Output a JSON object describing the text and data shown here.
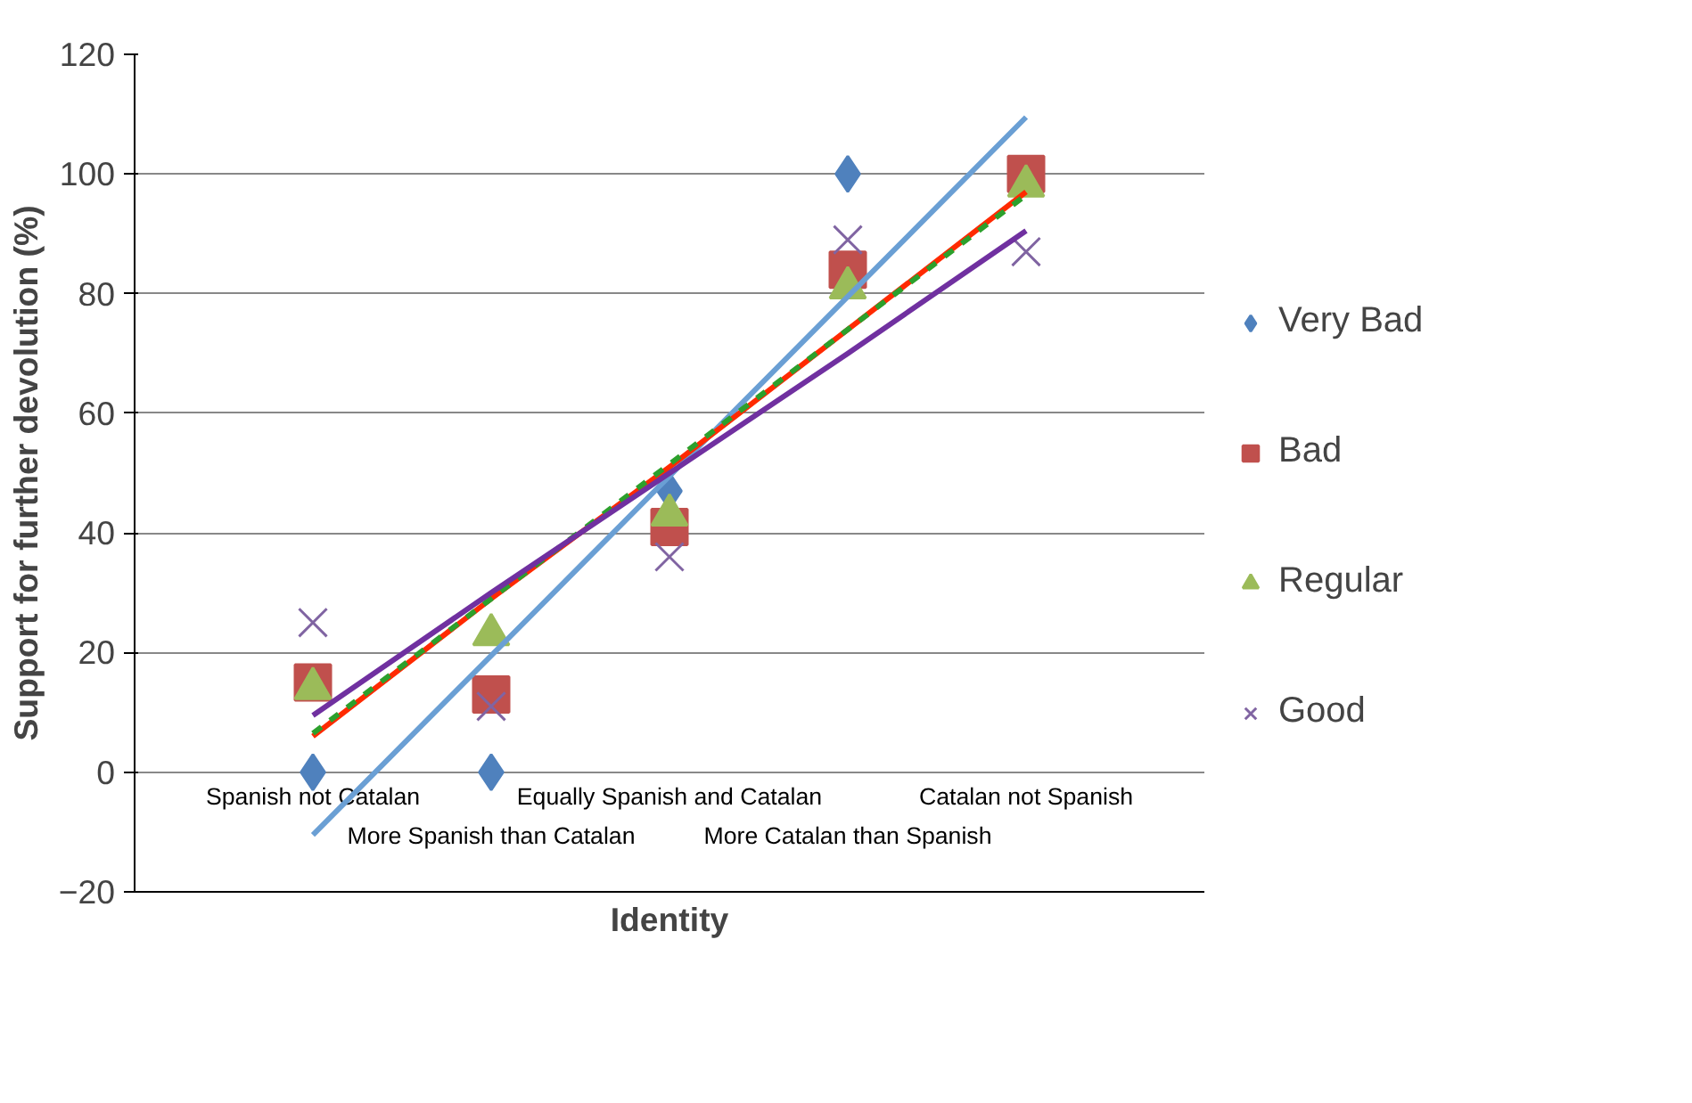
{
  "chart_data": {
    "type": "scatter",
    "xlabel": "Identity",
    "ylabel": "Support for further devolution (%)",
    "categories": [
      "Spanish not Catalan",
      "More Spanish than Catalan",
      "Equally Spanish and Catalan",
      "More Catalan than Spanish",
      "Catalan not Spanish"
    ],
    "series": [
      {
        "name": "Very Bad",
        "color": "#4f81bd",
        "marker": "diamond",
        "values": [
          0,
          0,
          47,
          100,
          null
        ]
      },
      {
        "name": "Bad",
        "color": "#c0504d",
        "marker": "square",
        "values": [
          15,
          13,
          41,
          84,
          100
        ]
      },
      {
        "name": "Regular",
        "color": "#9bbb59",
        "marker": "triangle",
        "values": [
          14,
          23,
          43,
          81,
          98
        ]
      },
      {
        "name": "Good",
        "color": "#8064a2",
        "marker": "cross",
        "values": [
          25,
          11,
          36,
          89,
          87
        ]
      },
      {
        "type": "line",
        "color": "#6a9fd4",
        "line_style": "solid",
        "values": [
          -10.5,
          19.5,
          49.5,
          79.5,
          109.5
        ]
      },
      {
        "type": "line",
        "color": "#ff2a00",
        "line_style": "solid",
        "values": [
          6,
          29,
          51,
          74,
          97
        ]
      },
      {
        "type": "line",
        "color": "#2ca02c",
        "line_style": "dashed",
        "values": [
          6.5,
          29,
          51.5,
          74,
          96.5
        ]
      },
      {
        "type": "line",
        "color": "#7030a0",
        "line_style": "solid",
        "values": [
          9.5,
          30,
          50,
          70,
          90.5
        ]
      }
    ],
    "ylim": [
      -20,
      120
    ],
    "yticks": [
      -20,
      0,
      20,
      40,
      60,
      80,
      100,
      120
    ],
    "grid": "y",
    "legend": "right"
  }
}
